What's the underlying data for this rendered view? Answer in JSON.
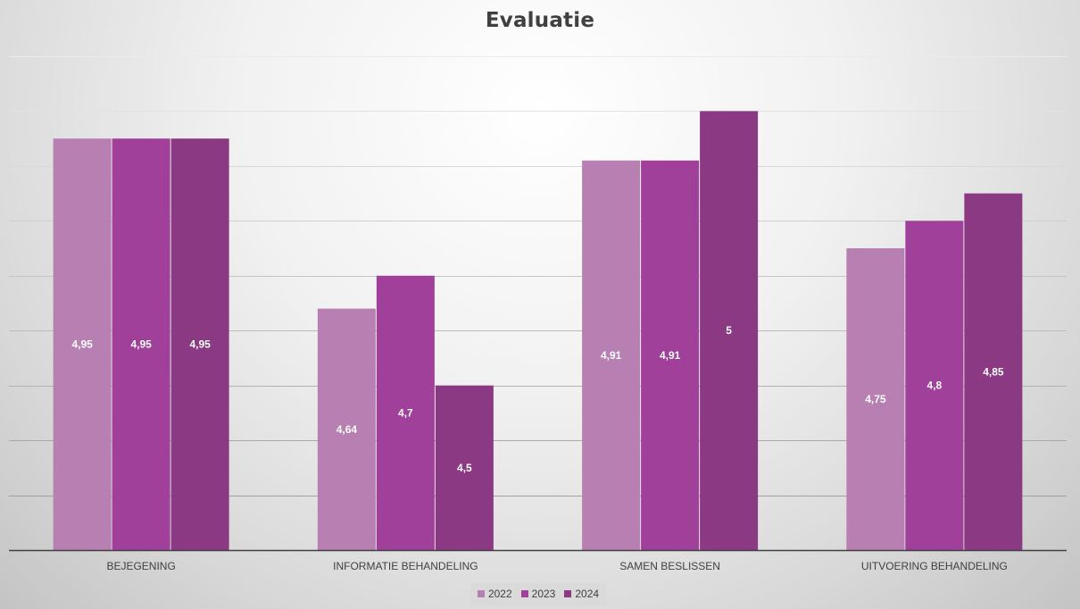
{
  "chart_data": {
    "type": "bar",
    "title": "Evaluatie",
    "categories": [
      "BEJEGENING",
      "INFORMATIE BEHANDELING",
      "SAMEN BESLISSEN",
      "UITVOERING BEHANDELING"
    ],
    "series": [
      {
        "name": "2022",
        "color": "#b87fb3",
        "values": [
          4.95,
          4.64,
          4.91,
          4.75
        ],
        "labels": [
          "4,95",
          "4,64",
          "4,91",
          "4,75"
        ]
      },
      {
        "name": "2023",
        "color": "#a0409a",
        "values": [
          4.95,
          4.7,
          4.91,
          4.8
        ],
        "labels": [
          "4,95",
          "4,7",
          "4,91",
          "4,8"
        ]
      },
      {
        "name": "2024",
        "color": "#8a3982",
        "values": [
          4.95,
          4.5,
          5,
          4.85
        ],
        "labels": [
          "4,95",
          "4,5",
          "5",
          "4,85"
        ]
      }
    ],
    "xlabel": "",
    "ylabel": "",
    "ylim": [
      4.2,
      5.1
    ],
    "y_tick_step": 0.1,
    "y_tick_labels_visible": false,
    "grid": true,
    "legend_position": "bottom",
    "data_label_position": "center"
  }
}
